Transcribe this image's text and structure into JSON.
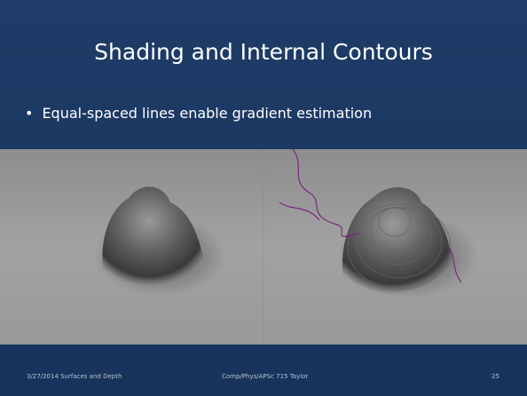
{
  "slide": {
    "title": "Shading and Internal Contours",
    "bullets": [
      "Equal-spaced lines enable gradient estimation"
    ],
    "footer": {
      "date": "3/27/2014",
      "topic": "Surfaces and Depth",
      "course": "Comp/Phys/APSc 715 Taylor",
      "page": "25"
    }
  }
}
